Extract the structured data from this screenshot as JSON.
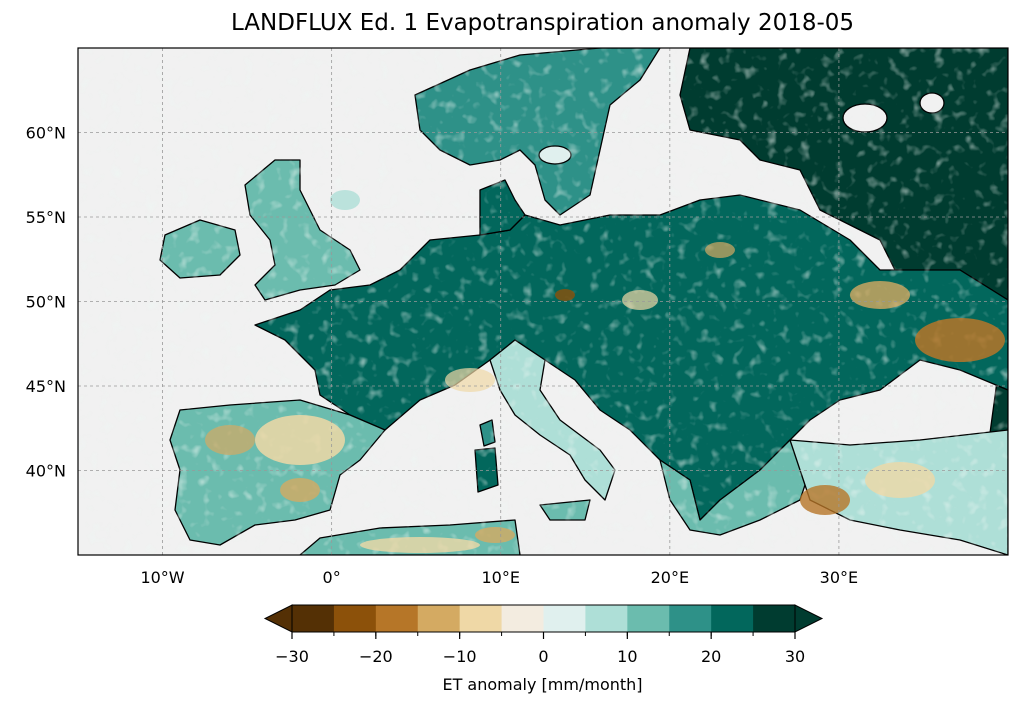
{
  "title": "LANDFLUX Ed. 1 Evapotranspiration anomaly 2018-05",
  "map": {
    "projection": "PlateCarree",
    "extent": {
      "lon_min": -15,
      "lon_max": 40,
      "lat_min": 35,
      "lat_max": 65
    },
    "background_color": "#f1f1f1",
    "gridlines": true,
    "lon_ticks": [
      {
        "value": -10,
        "label": "10°W"
      },
      {
        "value": 0,
        "label": "0°"
      },
      {
        "value": 10,
        "label": "10°E"
      },
      {
        "value": 20,
        "label": "20°E"
      },
      {
        "value": 30,
        "label": "30°E"
      }
    ],
    "lat_ticks": [
      {
        "value": 40,
        "label": "40°N"
      },
      {
        "value": 45,
        "label": "45°N"
      },
      {
        "value": 50,
        "label": "50°N"
      },
      {
        "value": 55,
        "label": "55°N"
      },
      {
        "value": 60,
        "label": "60°N"
      }
    ]
  },
  "colorbar": {
    "label": "ET anomaly [mm/month]",
    "extend": "both",
    "levels": [
      -30,
      -25,
      -20,
      -15,
      -10,
      -5,
      0,
      5,
      10,
      15,
      20,
      25,
      30
    ],
    "colors": [
      "#543005",
      "#8c510a",
      "#b67628",
      "#d4aa62",
      "#efd8a6",
      "#f3ece0",
      "#e0f0ee",
      "#aedfd7",
      "#6bbcae",
      "#2e9188",
      "#02675c",
      "#003c30"
    ],
    "under_color": "#543005",
    "over_color": "#003c30",
    "tick_values": [
      -30,
      -20,
      -10,
      0,
      10,
      20,
      30
    ],
    "tick_labels": [
      "−30",
      "−20",
      "−10",
      "0",
      "10",
      "20",
      "30"
    ]
  }
}
